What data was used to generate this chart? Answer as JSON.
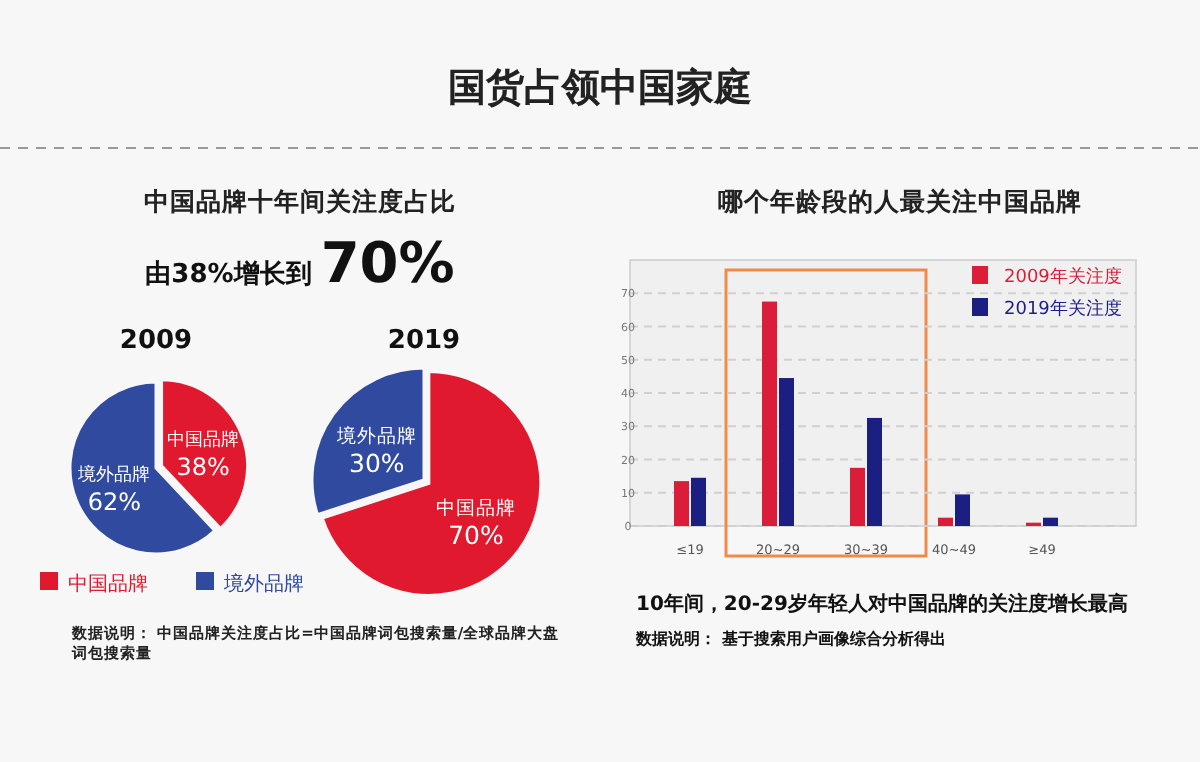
{
  "chart_data": [
    {
      "type": "other",
      "title": "国货占领中国家庭"
    },
    {
      "type": "other",
      "title": "中国品牌十年间关注度占比",
      "subtitle": "由38%增长到 70%",
      "annotations": [
        "数据说明：  中国品牌关注度占比=中国品牌词包搜索量/全球品牌大盘词包搜索量"
      ]
    },
    {
      "type": "pie",
      "title": "2009",
      "categories": [
        "中国品牌",
        "境外品牌"
      ],
      "values": [
        38,
        62
      ],
      "value_labels": [
        "38%",
        "62%"
      ],
      "colors": [
        "#e0192f",
        "#2f4a9f"
      ],
      "legend": "bottom"
    },
    {
      "type": "pie",
      "title": "2019",
      "categories": [
        "中国品牌",
        "境外品牌"
      ],
      "values": [
        70,
        30
      ],
      "value_labels": [
        "70%",
        "30%"
      ],
      "colors": [
        "#e0192f",
        "#2f4a9f"
      ]
    },
    {
      "type": "bar",
      "title": "哪个年龄段的人最关注中国品牌",
      "categories": [
        "≤19",
        "20~29",
        "30~39",
        "40~49",
        "≥49"
      ],
      "series": [
        {
          "name": "2009年关注度",
          "color": "#dc1d3a",
          "values": [
            13.5,
            67.5,
            17.5,
            2.5,
            1
          ]
        },
        {
          "name": "2019年关注度",
          "color": "#1c1f82",
          "values": [
            14.5,
            44.5,
            32.5,
            9.5,
            2.5
          ]
        }
      ],
      "ylim": [
        0,
        80
      ],
      "yticks": [
        0,
        10,
        20,
        30,
        40,
        50,
        60,
        70
      ],
      "grid": "y",
      "legend": "top right",
      "annotations": [
        "10年间，20-29岁年轻人对中国品牌的关注度增长最高",
        "数据说明：  基于搜索用户画像综合分析得出"
      ]
    }
  ]
}
